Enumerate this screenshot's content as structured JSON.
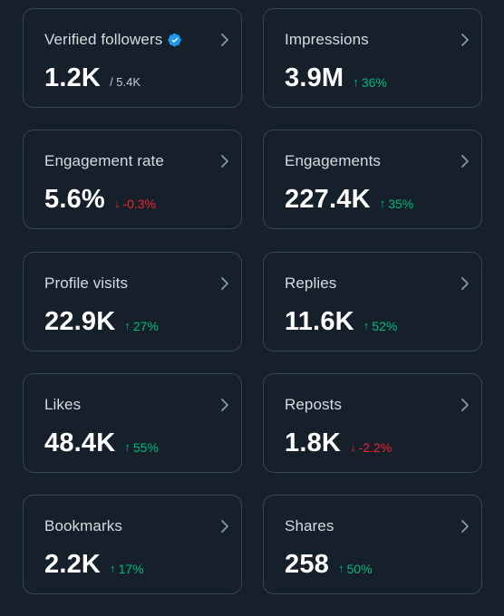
{
  "colors": {
    "background": "#15202b",
    "card_border": "#38444d",
    "positive": "#00ba7c",
    "negative": "#f4212e",
    "verified": "#1d9bf0"
  },
  "cards": [
    {
      "label": "Verified followers",
      "value": "1.2K",
      "sub": "/ 5.4K",
      "icon": "verified-badge-icon"
    },
    {
      "label": "Impressions",
      "value": "3.9M",
      "direction": "up",
      "arrow": "↑",
      "change": "36%"
    },
    {
      "label": "Engagement rate",
      "value": "5.6%",
      "direction": "down",
      "arrow": "↓",
      "change": "-0.3%"
    },
    {
      "label": "Engagements",
      "value": "227.4K",
      "direction": "up",
      "arrow": "↑",
      "change": "35%"
    },
    {
      "label": "Profile visits",
      "value": "22.9K",
      "direction": "up",
      "arrow": "↑",
      "change": "27%"
    },
    {
      "label": "Replies",
      "value": "11.6K",
      "direction": "up",
      "arrow": "↑",
      "change": "52%"
    },
    {
      "label": "Likes",
      "value": "48.4K",
      "direction": "up",
      "arrow": "↑",
      "change": "55%"
    },
    {
      "label": "Reposts",
      "value": "1.8K",
      "direction": "down",
      "arrow": "↓",
      "change": "-2.2%"
    },
    {
      "label": "Bookmarks",
      "value": "2.2K",
      "direction": "up",
      "arrow": "↑",
      "change": "17%"
    },
    {
      "label": "Shares",
      "value": "258",
      "direction": "up",
      "arrow": "↑",
      "change": "50%"
    }
  ]
}
